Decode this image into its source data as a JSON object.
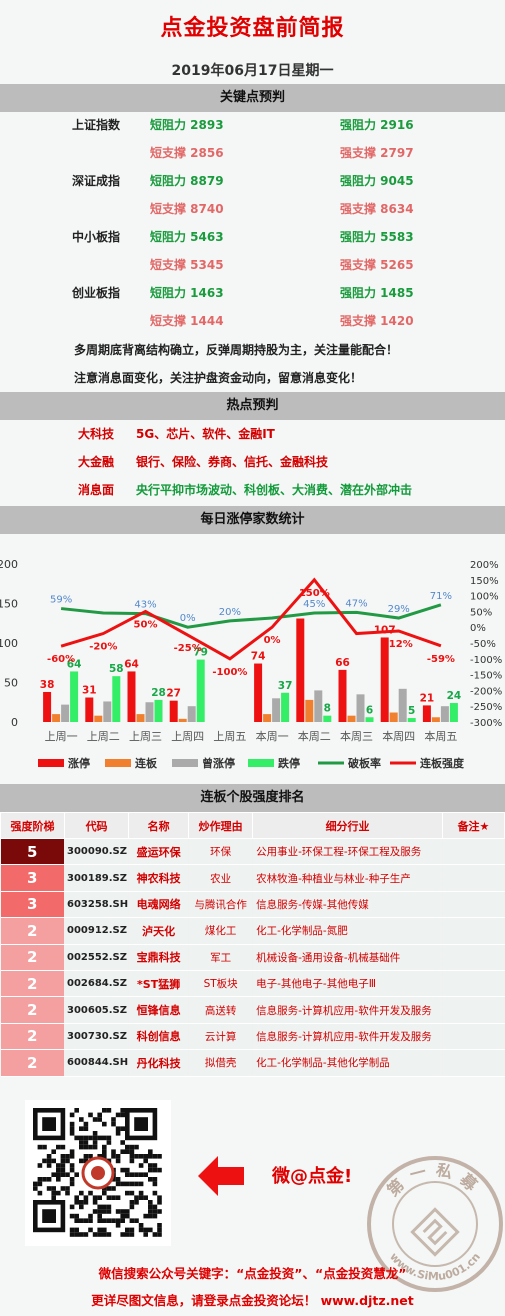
{
  "header": {
    "title": "点金投资盘前简报",
    "date": "2019年06月17日星期一"
  },
  "key_points": {
    "band": "关键点预判",
    "rows": [
      {
        "index": "上证指数",
        "left": "短阻力 2893",
        "right": "强阻力 2916",
        "color": "green"
      },
      {
        "index": "",
        "left": "短支撑 2856",
        "right": "强支撑 2797",
        "color": "pink"
      },
      {
        "index": "深证成指",
        "left": "短阻力 8879",
        "right": "强阻力 9045",
        "color": "green"
      },
      {
        "index": "",
        "left": "短支撑 8740",
        "right": "强支撑 8634",
        "color": "pink"
      },
      {
        "index": "中小板指",
        "left": "短阻力 5463",
        "right": "强阻力 5583",
        "color": "green"
      },
      {
        "index": "",
        "left": "短支撑 5345",
        "right": "强支撑 5265",
        "color": "pink"
      },
      {
        "index": "创业板指",
        "left": "短阻力 1463",
        "right": "强阻力 1485",
        "color": "green"
      },
      {
        "index": "",
        "left": "短支撑 1444",
        "right": "强支撑 1420",
        "color": "pink"
      }
    ],
    "note1": "多周期底背离结构确立，反弹周期持股为主，关注量能配合！",
    "note2": "注意消息面变化，关注护盘资金动向，留意消息变化！"
  },
  "hot": {
    "band": "热点预判",
    "rows": [
      {
        "key": "大科技",
        "value": "5G、芯片、软件、金融IT",
        "color": "red"
      },
      {
        "key": "大金融",
        "value": "银行、保险、券商、信托、金融科技",
        "color": "red"
      },
      {
        "key": "消息面",
        "value": "央行平抑市场波动、科创板、大消费、潜在外部冲击",
        "color": "green"
      }
    ]
  },
  "stats_band": "每日涨停家数统计",
  "chart_data": {
    "type": "bar",
    "categories": [
      "上周一",
      "上周二",
      "上周三",
      "上周四",
      "上周五",
      "本周一",
      "本周二",
      "本周三",
      "本周四",
      "本周五"
    ],
    "series": [
      {
        "name": "涨停",
        "values": [
          38,
          31,
          64,
          27,
          0,
          74,
          131,
          66,
          107,
          21
        ],
        "color": "#ee1111",
        "label": [
          "38",
          "31",
          "64",
          "27",
          "",
          "74",
          "",
          "66",
          "107",
          "21"
        ]
      },
      {
        "name": "连板",
        "values": [
          10,
          8,
          10,
          4,
          0,
          10,
          28,
          8,
          12,
          6
        ],
        "color": "#f08030"
      },
      {
        "name": "曾涨停",
        "values": [
          22,
          26,
          25,
          20,
          0,
          30,
          40,
          35,
          42,
          20
        ],
        "color": "#aaaaaa"
      },
      {
        "name": "跌停",
        "values": [
          64,
          58,
          28,
          79,
          0,
          37,
          8,
          6,
          5,
          24
        ],
        "color": "#33ee66",
        "label": [
          "64",
          "58",
          "28",
          "79",
          "",
          "37",
          "8",
          "6",
          "5",
          "24"
        ]
      }
    ],
    "lines": [
      {
        "name": "破板率",
        "values": [
          59,
          45,
          43,
          0,
          20,
          29,
          45,
          47,
          29,
          71
        ],
        "color": "#229944",
        "labels": [
          "59%",
          "",
          "43%",
          "0%",
          "20%",
          "",
          "45%",
          "47%",
          "29%",
          "71%"
        ]
      },
      {
        "name": "连板强度",
        "values": [
          -60,
          -20,
          50,
          -25,
          -100,
          0,
          150,
          -20,
          -12,
          -59
        ],
        "color": "#ee1111",
        "labels": [
          "-60%",
          "-20%",
          "50%",
          "-25%",
          "-100%",
          "0%",
          "150%",
          "",
          "-12%",
          "-59%"
        ]
      }
    ],
    "ylim": [
      0,
      200
    ],
    "yticks": [
      "0",
      "50",
      "100",
      "150",
      "200"
    ],
    "y2lim": [
      -300,
      200
    ],
    "y2ticks": [
      "200%",
      "150%",
      "100%",
      "50%",
      "0%",
      "-50%",
      "-100%",
      "-150%",
      "-200%",
      "-250%",
      "-300%"
    ],
    "legend": "bottom",
    "grid": false
  },
  "rank": {
    "band": "连板个股强度排名",
    "headers": [
      "强度阶梯",
      "代码",
      "名称",
      "炒作理由",
      "细分行业",
      "备注★"
    ],
    "rows": [
      {
        "level": "5",
        "code": "300090.SZ",
        "name": "盛运环保",
        "reason": "环保",
        "sector": "公用事业-环保工程-环保工程及服务",
        "bg": "#7a0a0a"
      },
      {
        "level": "3",
        "code": "300189.SZ",
        "name": "神农科技",
        "reason": "农业",
        "sector": "农林牧渔-种植业与林业-种子生产",
        "bg": "#f26a6a"
      },
      {
        "level": "3",
        "code": "603258.SH",
        "name": "电魂网络",
        "reason": "与腾讯合作",
        "sector": "信息服务-传媒-其他传媒",
        "bg": "#f26a6a"
      },
      {
        "level": "2",
        "code": "000912.SZ",
        "name": "泸天化",
        "reason": "煤化工",
        "sector": "化工-化学制品-氮肥",
        "bg": "#f4a0a0"
      },
      {
        "level": "2",
        "code": "002552.SZ",
        "name": "宝鼎科技",
        "reason": "军工",
        "sector": "机械设备-通用设备-机械基础件",
        "bg": "#f4a0a0"
      },
      {
        "level": "2",
        "code": "002684.SZ",
        "name": "*ST猛狮",
        "reason": "ST板块",
        "sector": "电子-其他电子-其他电子Ⅲ",
        "bg": "#f4a0a0"
      },
      {
        "level": "2",
        "code": "300605.SZ",
        "name": "恒锋信息",
        "reason": "高送转",
        "sector": "信息服务-计算机应用-软件开发及服务",
        "bg": "#f4a0a0"
      },
      {
        "level": "2",
        "code": "300730.SZ",
        "name": "科创信息",
        "reason": "云计算",
        "sector": "信息服务-计算机应用-软件开发及服务",
        "bg": "#f4a0a0"
      },
      {
        "level": "2",
        "code": "600844.SH",
        "name": "丹化科技",
        "reason": "拟借壳",
        "sector": "化工-化学制品-其他化学制品",
        "bg": "#f4a0a0"
      }
    ]
  },
  "promo": {
    "wechat": "微@点金!",
    "seal_text": "第一私募",
    "seal_url": "www.SiMu001.cn",
    "footer1": "微信搜索公众号关键字：“点金投资”、“点金投资慧龙”",
    "footer2": "更详尽图文信息，请登录点金投资论坛！ www.djtz.net"
  }
}
